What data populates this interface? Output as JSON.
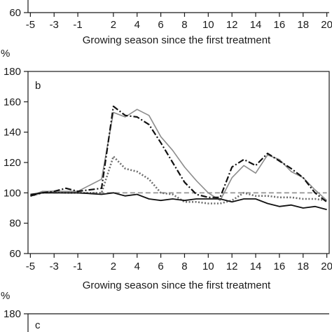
{
  "chart_data": [
    {
      "panel": "a",
      "type": "line",
      "partial": true,
      "xlabel": "Growing season since the first treatment",
      "x_ticks": [
        -5,
        -3,
        -1,
        2,
        4,
        6,
        8,
        10,
        12,
        14,
        16,
        18,
        20
      ],
      "visible_y_ticks": [
        60
      ]
    },
    {
      "panel": "b",
      "type": "line",
      "ylabel": "%",
      "xlabel": "Growing season since the first treatment",
      "xlim": [
        -5.2,
        20.2
      ],
      "ylim": [
        60,
        180
      ],
      "y_ticks": [
        60,
        80,
        100,
        120,
        140,
        160,
        180
      ],
      "x_ticks": [
        -5,
        -3,
        -1,
        2,
        4,
        6,
        8,
        10,
        12,
        14,
        16,
        18,
        20
      ],
      "grid": false,
      "x": [
        -5,
        -4,
        -3,
        -2,
        -1,
        1,
        2,
        3,
        4,
        5,
        6,
        7,
        8,
        9,
        10,
        11,
        12,
        13,
        14,
        15,
        16,
        17,
        18,
        19,
        20
      ],
      "series": [
        {
          "style": "solid-black",
          "values": [
            99,
            100,
            100,
            100,
            100,
            99,
            100,
            98,
            99,
            96,
            95,
            96,
            95,
            96,
            96,
            96,
            94,
            96,
            96,
            93,
            91,
            92,
            90,
            91,
            89
          ]
        },
        {
          "style": "dashdot-black",
          "values": [
            98,
            100,
            101,
            103,
            101,
            103,
            157,
            151,
            150,
            145,
            133,
            120,
            107,
            99,
            97,
            97,
            117,
            122,
            118,
            126,
            121,
            116,
            110,
            100,
            94
          ]
        },
        {
          "style": "solid-gray",
          "values": [
            98,
            101,
            101,
            101,
            101,
            109,
            153,
            150,
            155,
            151,
            137,
            128,
            117,
            108,
            100,
            95,
            110,
            118,
            113,
            125,
            122,
            114,
            110,
            102,
            95
          ]
        },
        {
          "style": "dotted-gray",
          "values": [
            98,
            100,
            101,
            100,
            100,
            100,
            124,
            116,
            114,
            109,
            100,
            99,
            94,
            94,
            93,
            93,
            95,
            100,
            98,
            98,
            97,
            97,
            96,
            96,
            95
          ]
        },
        {
          "style": "dashed-gray",
          "values": [
            98,
            100,
            100,
            100,
            100,
            100,
            100,
            100,
            100,
            100,
            100,
            100,
            100,
            100,
            100,
            100,
            100,
            100,
            100,
            100,
            100,
            100,
            100,
            100,
            100
          ]
        }
      ]
    },
    {
      "panel": "c",
      "type": "line",
      "partial": true,
      "ylabel": "%",
      "visible_y_ticks": [
        180
      ]
    }
  ],
  "labels": {
    "panel_a_xlabel": "Growing season since the first treatment",
    "panel_b_letter": "b",
    "panel_b_unit": "%",
    "panel_b_xlabel": "Growing season since the first treatment",
    "panel_c_letter": "c",
    "panel_c_unit": "%"
  },
  "colors": {
    "axis": "#1a1a1a",
    "solid-black": "#111111",
    "dashdot-black": "#111111",
    "solid-gray": "#8c8c8c",
    "dotted-gray": "#6e6e6e",
    "dashed-gray": "#9a9a9a"
  }
}
